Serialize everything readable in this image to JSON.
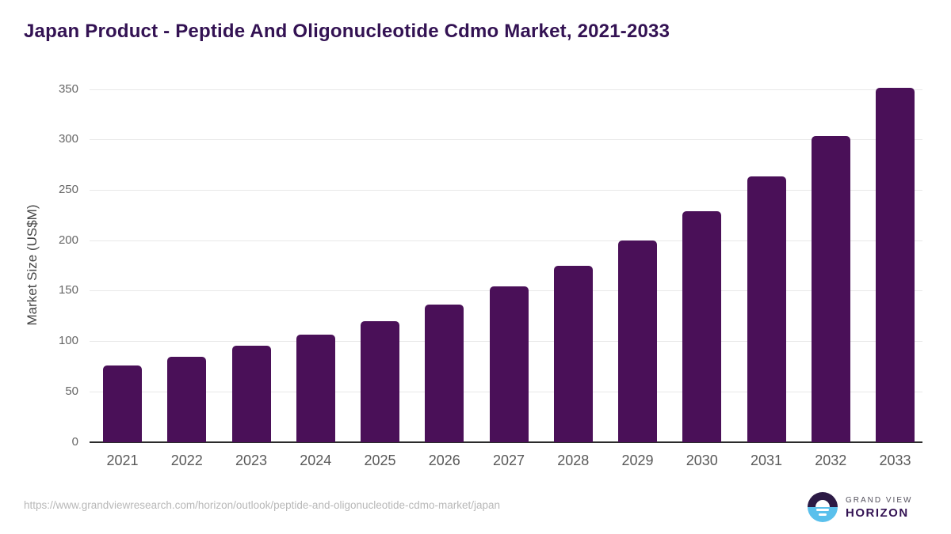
{
  "title": "Japan Product - Peptide And Oligonucleotide Cdmo Market, 2021-2033",
  "footer": {
    "source_url": "https://www.grandviewresearch.com/horizon/outlook/peptide-and-oligonucleotide-cdmo-market/japan",
    "brand": {
      "line1": "GRAND VIEW",
      "line2": "HORIZON"
    }
  },
  "colors": {
    "bar": "#4a1058",
    "title": "#331253",
    "gridline": "#e8e8e8",
    "axis_line": "#2b2b2b",
    "y_tick_label": "#666666",
    "x_tick_label": "#595959",
    "url_text": "#b8b8b8",
    "logo_blue": "#5ac0ec",
    "logo_dark": "#2c1a45"
  },
  "chart_data": {
    "type": "bar",
    "title": "Japan Product - Peptide And Oligonucleotide Cdmo Market, 2021-2033",
    "categories": [
      "2021",
      "2022",
      "2023",
      "2024",
      "2025",
      "2026",
      "2027",
      "2028",
      "2029",
      "2030",
      "2031",
      "2032",
      "2033"
    ],
    "values": [
      76,
      84,
      95,
      106,
      120,
      136,
      154,
      175,
      200,
      229,
      263,
      303,
      351
    ],
    "xlabel": "",
    "ylabel": "Market Size (US$M)",
    "ylim": [
      0,
      350
    ],
    "ytick_step": 50,
    "grid": "horizontal",
    "legend": "none",
    "bar_color": "#4a1058"
  }
}
